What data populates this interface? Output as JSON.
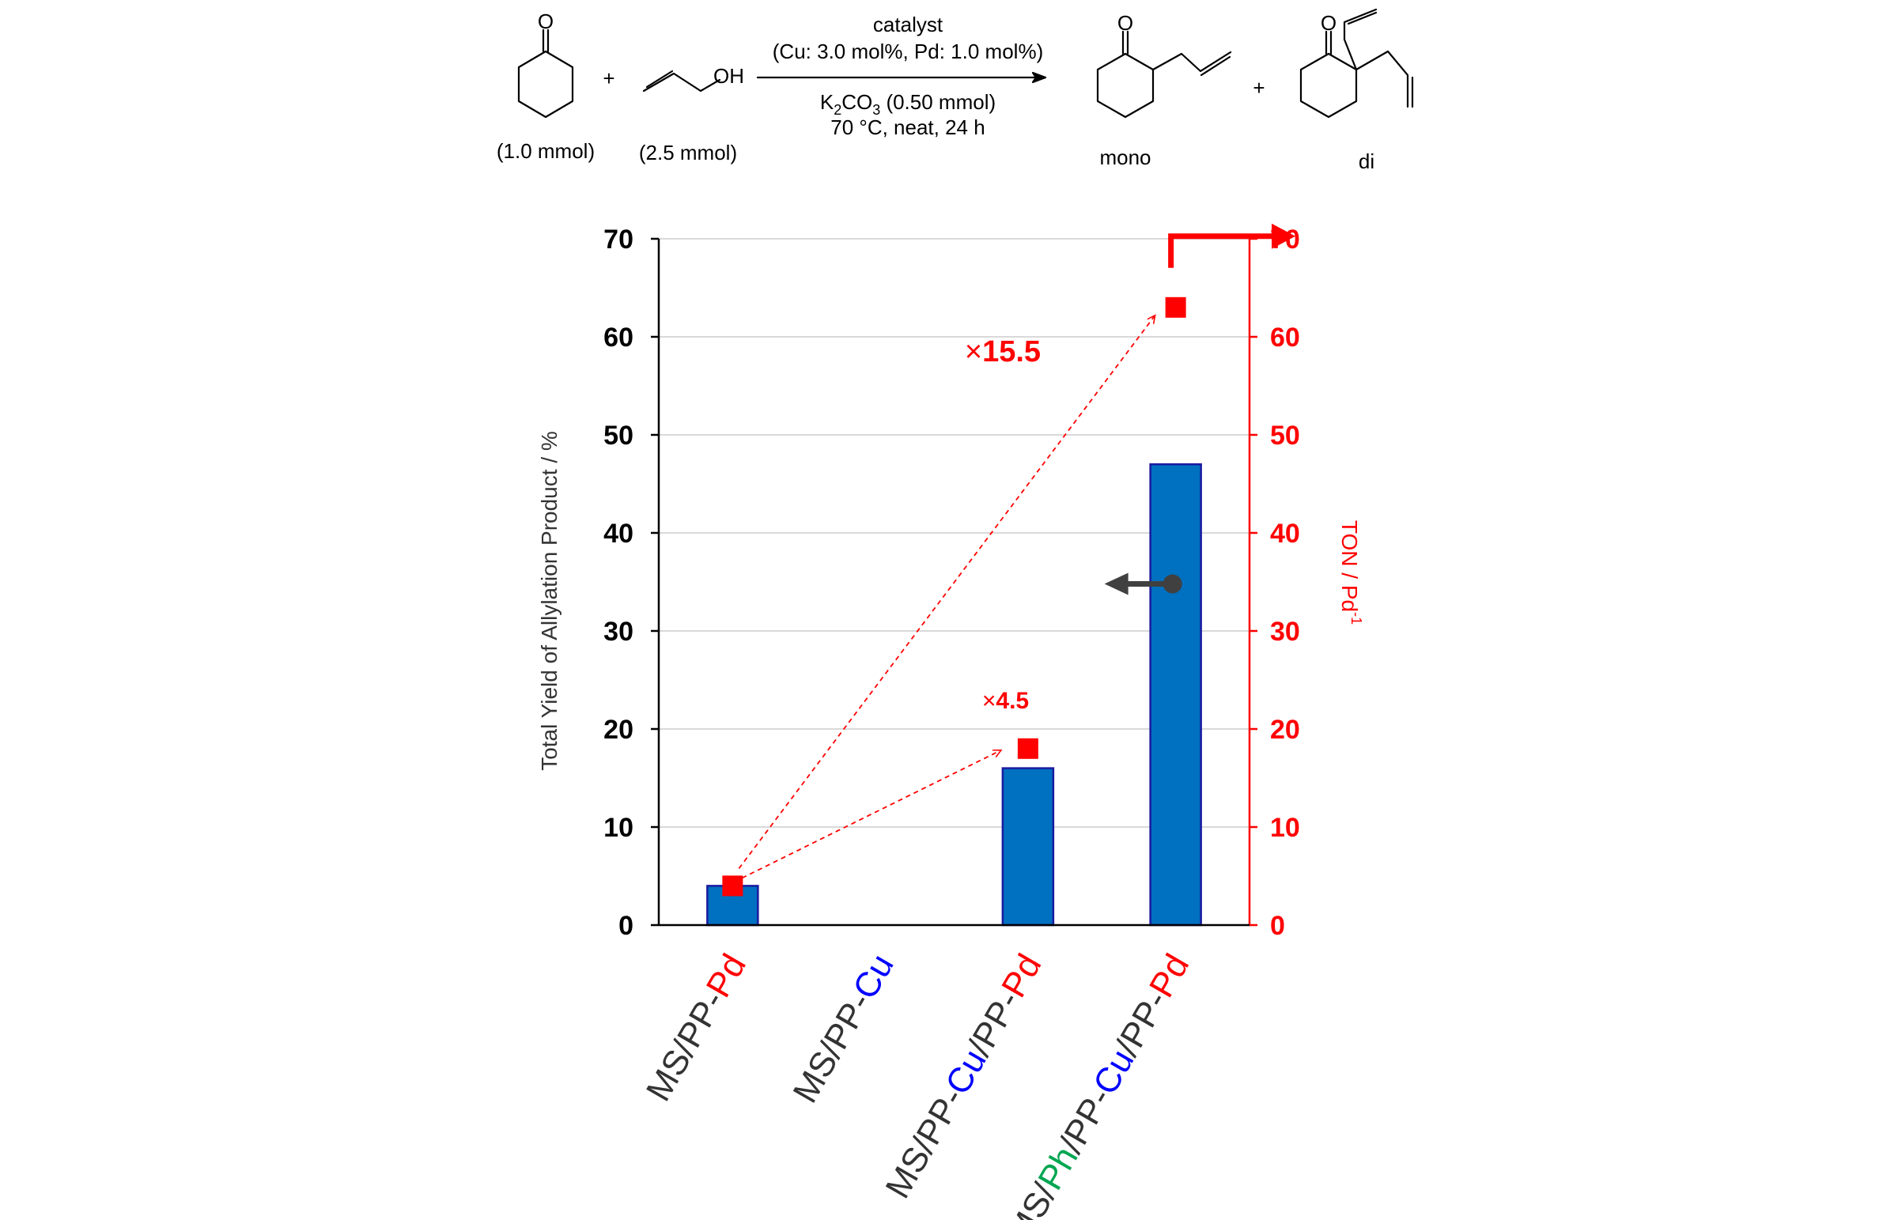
{
  "scheme": {
    "oxygen": "O",
    "hydroxyl": "OH",
    "plus": "+",
    "ketone_amount": "(1.0 mmol)",
    "allyl_alcohol_amount": "(2.5 mmol)",
    "arrow_above_1": "catalyst",
    "arrow_above_2": "(Cu: 3.0 mol%, Pd: 1.0 mol%)",
    "base_prefix": "K",
    "base_sub1": "2",
    "base_mid": "CO",
    "base_sub2": "3",
    "base_suffix": " (0.50 mmol)",
    "arrow_below_2": "70 °C, neat, 24 h",
    "product_mono": "mono",
    "product_di": "di"
  },
  "chart_data": {
    "type": "bar",
    "categories": [
      [
        {
          "text": "MS/PP-",
          "color": "#333333"
        },
        {
          "text": "Pd",
          "color": "#ff0000"
        }
      ],
      [
        {
          "text": "MS/PP-",
          "color": "#333333"
        },
        {
          "text": "Cu",
          "color": "#0000ff"
        }
      ],
      [
        {
          "text": "MS/PP-",
          "color": "#333333"
        },
        {
          "text": "Cu",
          "color": "#0000ff"
        },
        {
          "text": "/PP-",
          "color": "#333333"
        },
        {
          "text": "Pd",
          "color": "#ff0000"
        }
      ],
      [
        {
          "text": "MS/",
          "color": "#333333"
        },
        {
          "text": "Ph",
          "color": "#00a651"
        },
        {
          "text": "/PP-",
          "color": "#333333"
        },
        {
          "text": "Cu",
          "color": "#0000ff"
        },
        {
          "text": "/PP-",
          "color": "#333333"
        },
        {
          "text": "Pd",
          "color": "#ff0000"
        }
      ]
    ],
    "series": [
      {
        "values": [
          4,
          0,
          16,
          47
        ],
        "axis": "left",
        "marker": "bar",
        "color": "#0070c0",
        "edge": "#1a1aa0"
      },
      {
        "values": [
          4,
          null,
          18,
          63
        ],
        "axis": "right",
        "marker": "square",
        "color": "#ff0000"
      }
    ],
    "ylabel": "Total Yield of Allylation Product / %",
    "y2label_main": "TON / Pd",
    "y2label_sup": "-1",
    "ylim": [
      0,
      70
    ],
    "y2lim": [
      0,
      70
    ],
    "yticks": [
      0,
      10,
      20,
      30,
      40,
      50,
      60,
      70
    ],
    "grid": true,
    "annotations": [
      {
        "text": "15.5",
        "mult": "×"
      },
      {
        "text": "4.5",
        "mult": "×"
      }
    ],
    "colors": {
      "axis_left": "#000000",
      "axis_right": "#ff0000",
      "grid": "#d9d9d9",
      "arrow_dark": "#404040"
    }
  }
}
